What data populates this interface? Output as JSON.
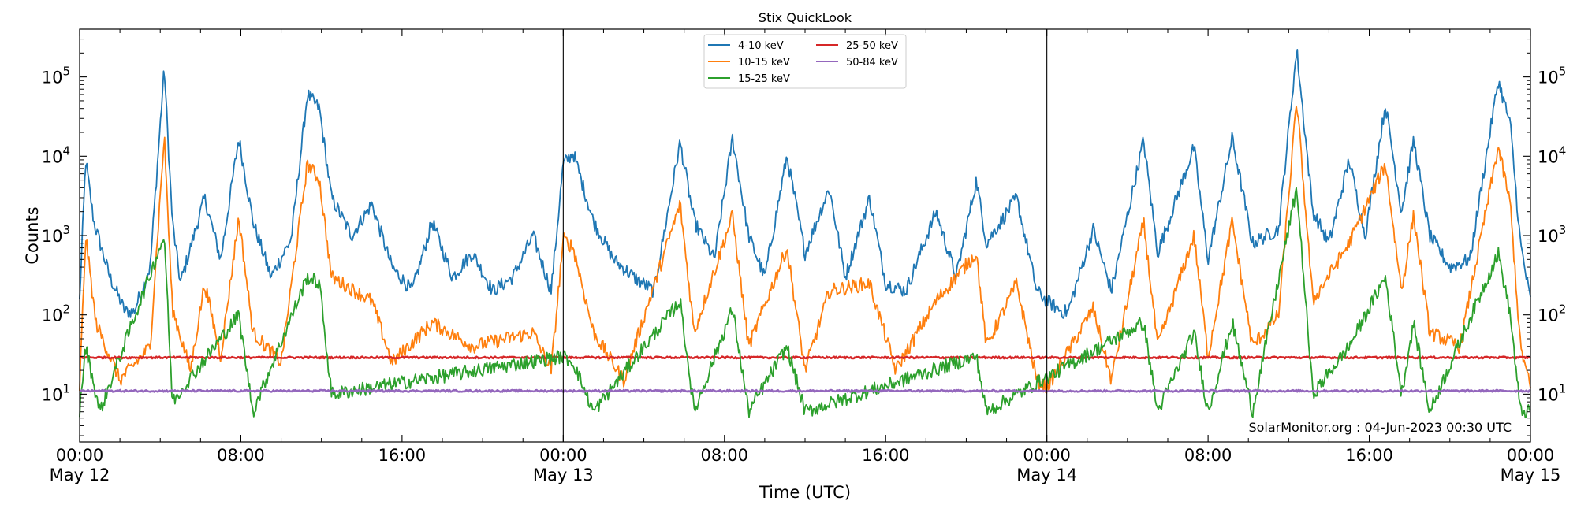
{
  "chart_data": {
    "type": "line",
    "title": "Stix QuickLook",
    "xlabel": "Time (UTC)",
    "ylabel": "Counts",
    "yscale": "log",
    "ylim": [
      2.5,
      400000
    ],
    "x_range_hours": [
      0,
      72
    ],
    "x_ticks": [
      {
        "hour": 0,
        "time": "00:00",
        "date": "May 12"
      },
      {
        "hour": 8,
        "time": "08:00",
        "date": ""
      },
      {
        "hour": 16,
        "time": "16:00",
        "date": ""
      },
      {
        "hour": 24,
        "time": "00:00",
        "date": "May 13"
      },
      {
        "hour": 32,
        "time": "08:00",
        "date": ""
      },
      {
        "hour": 40,
        "time": "16:00",
        "date": ""
      },
      {
        "hour": 48,
        "time": "00:00",
        "date": "May 14"
      },
      {
        "hour": 56,
        "time": "08:00",
        "date": ""
      },
      {
        "hour": 64,
        "time": "16:00",
        "date": ""
      },
      {
        "hour": 72,
        "time": "00:00",
        "date": "May 15"
      }
    ],
    "y_ticks": [
      {
        "value": 10,
        "base": "10",
        "exp": "1"
      },
      {
        "value": 100,
        "base": "10",
        "exp": "2"
      },
      {
        "value": 1000,
        "base": "10",
        "exp": "3"
      },
      {
        "value": 10000,
        "base": "10",
        "exp": "4"
      },
      {
        "value": 100000,
        "base": "10",
        "exp": "5"
      }
    ],
    "day_separators_hours": [
      24,
      48
    ],
    "legend_position": "top-center",
    "grid": false,
    "annotation": "SolarMonitor.org : 04-Jun-2023 00:30 UTC",
    "series": [
      {
        "name": "4-10 keV",
        "color": "#1f77b4",
        "baseline": 110,
        "points": [
          [
            0,
            150
          ],
          [
            0.3,
            9000
          ],
          [
            0.7,
            1500
          ],
          [
            1.5,
            300
          ],
          [
            2.5,
            80
          ],
          [
            3.5,
            400
          ],
          [
            4.2,
            130000
          ],
          [
            4.6,
            1500
          ],
          [
            5,
            250
          ],
          [
            6.2,
            3000
          ],
          [
            7,
            500
          ],
          [
            7.9,
            17000
          ],
          [
            8.6,
            1500
          ],
          [
            9.5,
            300
          ],
          [
            10.5,
            900
          ],
          [
            11.3,
            60000
          ],
          [
            11.9,
            40000
          ],
          [
            12.5,
            3000
          ],
          [
            13.5,
            1000
          ],
          [
            14.5,
            2500
          ],
          [
            15.5,
            400
          ],
          [
            16.5,
            200
          ],
          [
            17.5,
            1500
          ],
          [
            18.5,
            300
          ],
          [
            19.5,
            600
          ],
          [
            20.5,
            200
          ],
          [
            21.5,
            300
          ],
          [
            22.5,
            1000
          ],
          [
            23.4,
            200
          ],
          [
            24,
            8000
          ],
          [
            24.5,
            11000
          ],
          [
            25.5,
            1500
          ],
          [
            26.5,
            500
          ],
          [
            27.5,
            300
          ],
          [
            28.5,
            200
          ],
          [
            29.8,
            15000
          ],
          [
            30.5,
            1500
          ],
          [
            31.5,
            500
          ],
          [
            32.4,
            17000
          ],
          [
            33.2,
            1000
          ],
          [
            34,
            300
          ],
          [
            35.1,
            10000
          ],
          [
            36,
            600
          ],
          [
            37.2,
            4000
          ],
          [
            38,
            300
          ],
          [
            39.2,
            3000
          ],
          [
            40,
            250
          ],
          [
            41,
            200
          ],
          [
            42.5,
            2000
          ],
          [
            43.5,
            300
          ],
          [
            44.5,
            5000
          ],
          [
            45,
            800
          ],
          [
            46.5,
            3000
          ],
          [
            47.5,
            200
          ],
          [
            48,
            150
          ],
          [
            49,
            100
          ],
          [
            50.3,
            1200
          ],
          [
            51.2,
            200
          ],
          [
            52.8,
            16000
          ],
          [
            53.5,
            600
          ],
          [
            55.3,
            13000
          ],
          [
            56,
            500
          ],
          [
            57.2,
            17000
          ],
          [
            58.2,
            800
          ],
          [
            59.5,
            1200
          ],
          [
            60.4,
            220000
          ],
          [
            61.2,
            2000
          ],
          [
            62,
            800
          ],
          [
            63,
            9000
          ],
          [
            63.8,
            1000
          ],
          [
            64.8,
            45000
          ],
          [
            65.6,
            2000
          ],
          [
            66.2,
            16000
          ],
          [
            67,
            1000
          ],
          [
            68,
            400
          ],
          [
            69,
            500
          ],
          [
            70.4,
            90000
          ],
          [
            71,
            25000
          ],
          [
            71.5,
            800
          ],
          [
            72,
            150
          ]
        ]
      },
      {
        "name": "10-15 keV",
        "color": "#ff7f0e",
        "baseline": 9,
        "points": [
          [
            0,
            12
          ],
          [
            0.3,
            1000
          ],
          [
            0.8,
            80
          ],
          [
            2,
            15
          ],
          [
            3.5,
            40
          ],
          [
            4.2,
            18000
          ],
          [
            4.6,
            120
          ],
          [
            5.5,
            20
          ],
          [
            6.2,
            250
          ],
          [
            7,
            30
          ],
          [
            7.9,
            1700
          ],
          [
            8.6,
            60
          ],
          [
            10,
            25
          ],
          [
            11.3,
            8000
          ],
          [
            11.9,
            5000
          ],
          [
            12.5,
            300
          ],
          [
            14.5,
            150
          ],
          [
            15.5,
            25
          ],
          [
            17.5,
            80
          ],
          [
            19.5,
            40
          ],
          [
            22.5,
            60
          ],
          [
            23.4,
            20
          ],
          [
            24,
            900
          ],
          [
            24.5,
            700
          ],
          [
            25.5,
            60
          ],
          [
            27,
            15
          ],
          [
            29.8,
            2500
          ],
          [
            30.5,
            60
          ],
          [
            32.4,
            1800
          ],
          [
            33.2,
            40
          ],
          [
            35.1,
            700
          ],
          [
            36,
            20
          ],
          [
            37.2,
            200
          ],
          [
            39.2,
            250
          ],
          [
            40.5,
            20
          ],
          [
            42.5,
            150
          ],
          [
            44.5,
            600
          ],
          [
            45,
            40
          ],
          [
            46.5,
            250
          ],
          [
            47.5,
            15
          ],
          [
            48,
            12
          ],
          [
            50.3,
            120
          ],
          [
            51.2,
            15
          ],
          [
            52.8,
            1500
          ],
          [
            53.5,
            40
          ],
          [
            55.3,
            1000
          ],
          [
            56,
            30
          ],
          [
            57.2,
            1500
          ],
          [
            58.2,
            40
          ],
          [
            59.5,
            100
          ],
          [
            60.4,
            50000
          ],
          [
            61.2,
            150
          ],
          [
            63,
            800
          ],
          [
            64.8,
            8000
          ],
          [
            65.6,
            200
          ],
          [
            66.2,
            1800
          ],
          [
            67,
            60
          ],
          [
            68.5,
            40
          ],
          [
            70.4,
            13000
          ],
          [
            71,
            2500
          ],
          [
            71.5,
            40
          ],
          [
            72,
            12
          ]
        ]
      },
      {
        "name": "15-25 keV",
        "color": "#2ca02c",
        "baseline": 5.5,
        "points": [
          [
            0,
            6
          ],
          [
            0.3,
            40
          ],
          [
            1,
            6
          ],
          [
            4.2,
            1000
          ],
          [
            4.6,
            8
          ],
          [
            7.9,
            100
          ],
          [
            8.6,
            6
          ],
          [
            11.3,
            300
          ],
          [
            11.9,
            250
          ],
          [
            12.5,
            10
          ],
          [
            24,
            30
          ],
          [
            24.5,
            25
          ],
          [
            25.5,
            6
          ],
          [
            29.8,
            150
          ],
          [
            30.5,
            6
          ],
          [
            32.4,
            120
          ],
          [
            33.2,
            6
          ],
          [
            35.1,
            40
          ],
          [
            36,
            6
          ],
          [
            44.5,
            30
          ],
          [
            45,
            6
          ],
          [
            52.8,
            80
          ],
          [
            53.5,
            6
          ],
          [
            55.3,
            60
          ],
          [
            56,
            6
          ],
          [
            57.2,
            80
          ],
          [
            58.2,
            6
          ],
          [
            60.4,
            4000
          ],
          [
            61.2,
            10
          ],
          [
            63,
            40
          ],
          [
            64.8,
            300
          ],
          [
            65.6,
            10
          ],
          [
            66.2,
            80
          ],
          [
            67,
            6
          ],
          [
            70.4,
            600
          ],
          [
            71,
            100
          ],
          [
            71.5,
            6
          ],
          [
            72,
            6
          ]
        ]
      },
      {
        "name": "25-50 keV",
        "color": "#d62728",
        "baseline": 29,
        "points": [
          [
            0,
            29
          ],
          [
            72,
            29
          ]
        ]
      },
      {
        "name": "50-84 keV",
        "color": "#9467bd",
        "baseline": 11,
        "points": [
          [
            0,
            11
          ],
          [
            72,
            11
          ]
        ]
      }
    ]
  }
}
